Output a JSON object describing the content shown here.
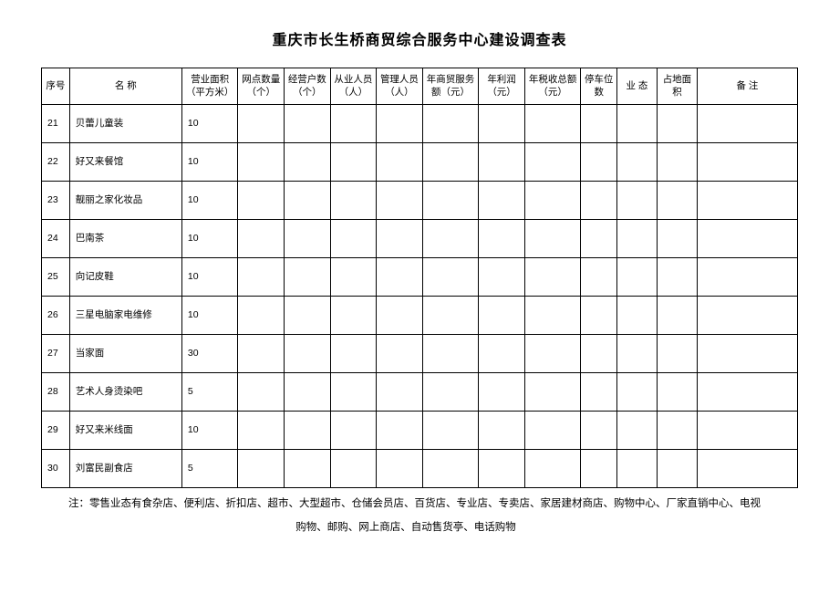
{
  "title": "重庆市长生桥商贸综合服务中心建设调查表",
  "headers": {
    "seq": "序号",
    "name": "名 称",
    "area": "营业面积（平方米）",
    "outlets": "网点数量（个）",
    "operators": "经营户数（个）",
    "employees": "从业人员（人）",
    "managers": "管理人员（人）",
    "service": "年商贸服务额（元）",
    "profit": "年利润（元）",
    "tax": "年税收总额（元）",
    "parking": "停车位数",
    "format": "业 态",
    "land": "占地面积",
    "remark": "备 注"
  },
  "rows": [
    {
      "seq": "21",
      "name": "贝蕾儿童装",
      "area": "10"
    },
    {
      "seq": "22",
      "name": "好又来餐馆",
      "area": "10"
    },
    {
      "seq": "23",
      "name": "靓丽之家化妆品",
      "area": "10"
    },
    {
      "seq": "24",
      "name": "巴南茶",
      "area": "10"
    },
    {
      "seq": "25",
      "name": "向记皮鞋",
      "area": "10"
    },
    {
      "seq": "26",
      "name": "三星电脑家电维修",
      "area": "10"
    },
    {
      "seq": "27",
      "name": "当家面",
      "area": "30"
    },
    {
      "seq": "28",
      "name": "艺术人身烫染吧",
      "area": "5"
    },
    {
      "seq": "29",
      "name": "好又来米线面",
      "area": "10"
    },
    {
      "seq": "30",
      "name": "刘富民副食店",
      "area": "5"
    }
  ],
  "footnote_line1": "注：零售业态有食杂店、便利店、折扣店、超市、大型超市、仓储会员店、百货店、专业店、专卖店、家居建材商店、购物中心、厂家直销中心、电视",
  "footnote_line2": "购物、邮购、网上商店、自动售货亭、电话购物"
}
